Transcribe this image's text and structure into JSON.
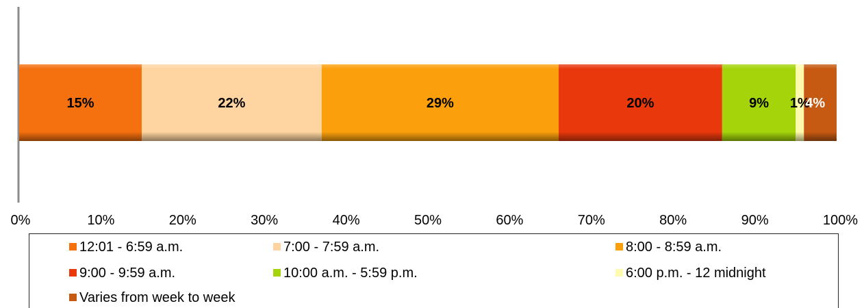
{
  "chart_data": {
    "type": "bar",
    "orientation": "horizontal",
    "stacked": "percent",
    "categories": [
      ""
    ],
    "series": [
      {
        "name": "12:01 - 6:59 a.m.",
        "values": [
          15
        ],
        "label": "15%",
        "color": "#F5700F"
      },
      {
        "name": "7:00 - 7:59 a.m.",
        "values": [
          22
        ],
        "label": "22%",
        "color": "#FED5A0"
      },
      {
        "name": "8:00 - 8:59 a.m.",
        "values": [
          29
        ],
        "label": "29%",
        "color": "#FBA00C"
      },
      {
        "name": "9:00 - 9:59 a.m.",
        "values": [
          20
        ],
        "label": "20%",
        "color": "#E8380C"
      },
      {
        "name": "10:00 a.m. - 5:59 p.m.",
        "values": [
          9
        ],
        "label": "9%",
        "color": "#A5D40A"
      },
      {
        "name": "6:00 p.m. - 12 midnight",
        "values": [
          1
        ],
        "label": "1%",
        "color": "#FFFBAE"
      },
      {
        "name": "Varies from week to week",
        "values": [
          4
        ],
        "label": "4%",
        "color": "#C65A12"
      }
    ],
    "xlim": [
      0,
      100
    ],
    "x_ticks": [
      "0%",
      "10%",
      "20%",
      "30%",
      "40%",
      "50%",
      "60%",
      "70%",
      "80%",
      "90%",
      "100%"
    ],
    "grid": false,
    "legend_position": "bottom"
  }
}
